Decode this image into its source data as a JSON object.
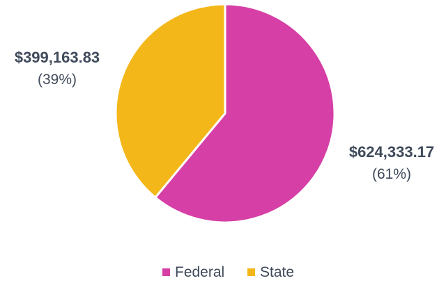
{
  "chart_data": {
    "type": "pie",
    "categories": [
      "Federal",
      "State"
    ],
    "values": [
      624333.17,
      399163.83
    ],
    "percent_labels": [
      "(61%)",
      "(39%)"
    ],
    "value_labels": [
      "$624,333.17",
      "$399,163.83"
    ],
    "colors": [
      "#d63fa6",
      "#f4b71a"
    ],
    "legend": {
      "placement": "bottom",
      "entries": [
        "Federal",
        "State"
      ]
    },
    "title": ""
  }
}
